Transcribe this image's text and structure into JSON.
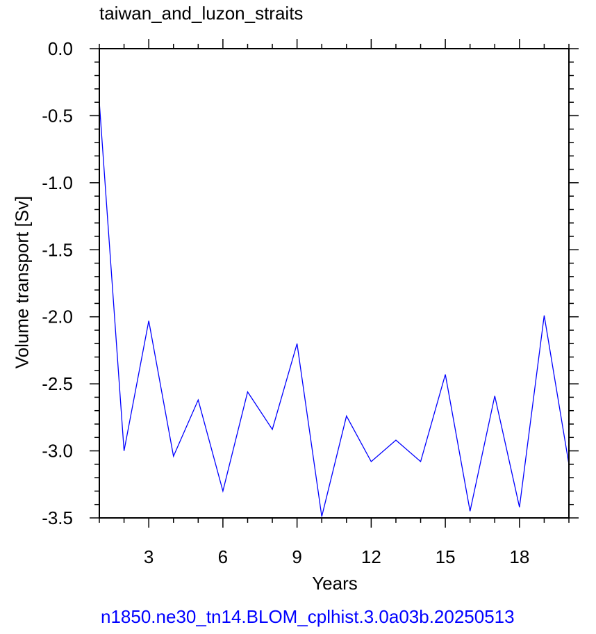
{
  "chart_data": {
    "type": "line",
    "title": "taiwan_and_luzon_straits",
    "xlabel": "Years",
    "ylabel": "Volume transport [Sv]",
    "caption": "n1850.ne30_tn14.BLOM_cplhist.3.0a03b.20250513",
    "xlim": [
      1,
      20
    ],
    "ylim": [
      -3.5,
      0.0
    ],
    "x_ticks": [
      3,
      6,
      9,
      12,
      15,
      18
    ],
    "y_ticks": [
      "0.0",
      "-0.5",
      "-1.0",
      "-1.5",
      "-2.0",
      "-2.5",
      "-3.0",
      "-3.5"
    ],
    "grid": false,
    "series": [
      {
        "color": "#0000ff",
        "x": [
          1,
          2,
          3,
          4,
          5,
          6,
          7,
          8,
          9,
          10,
          11,
          12,
          13,
          14,
          15,
          16,
          17,
          18,
          19,
          20
        ],
        "values": [
          -0.4,
          -3.0,
          -2.03,
          -3.04,
          -2.62,
          -3.3,
          -2.56,
          -2.84,
          -2.2,
          -3.49,
          -2.74,
          -3.08,
          -2.92,
          -3.08,
          -2.43,
          -3.45,
          -2.59,
          -3.42,
          -1.99,
          -3.1
        ]
      }
    ]
  }
}
